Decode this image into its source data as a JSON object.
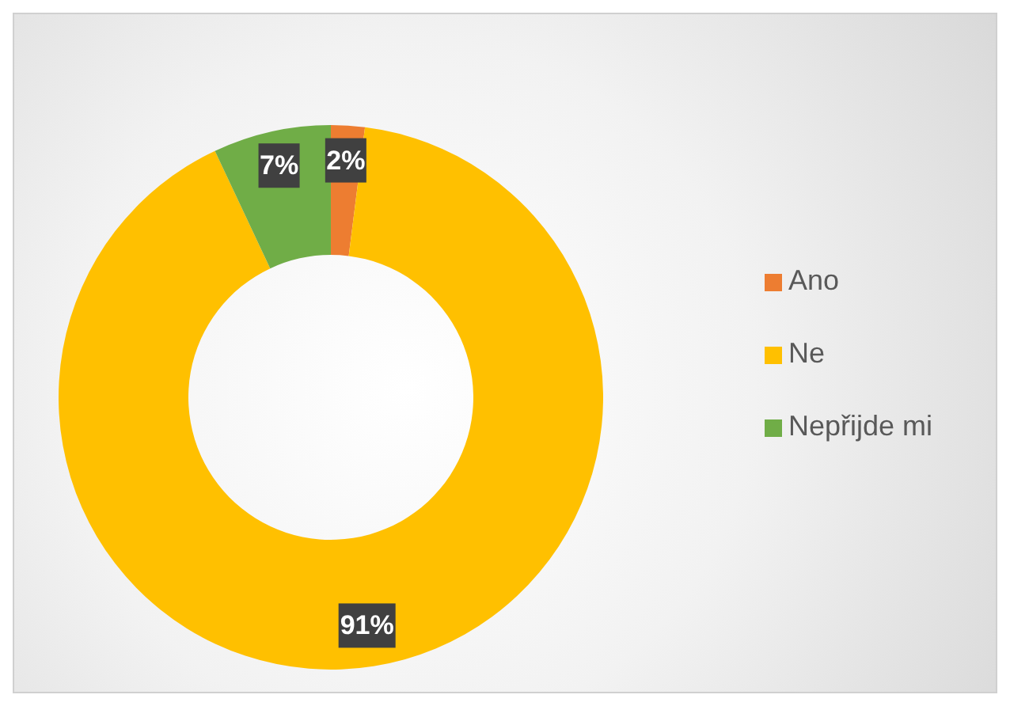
{
  "chart_data": {
    "type": "donut",
    "categories": [
      "Ano",
      "Ne",
      "Nepřijde mi"
    ],
    "values": [
      2,
      91,
      7
    ],
    "colors": [
      "#ed7d31",
      "#ffc000",
      "#70ad47"
    ],
    "value_labels": [
      "2%",
      "91%",
      "7%"
    ],
    "legend": "right"
  }
}
